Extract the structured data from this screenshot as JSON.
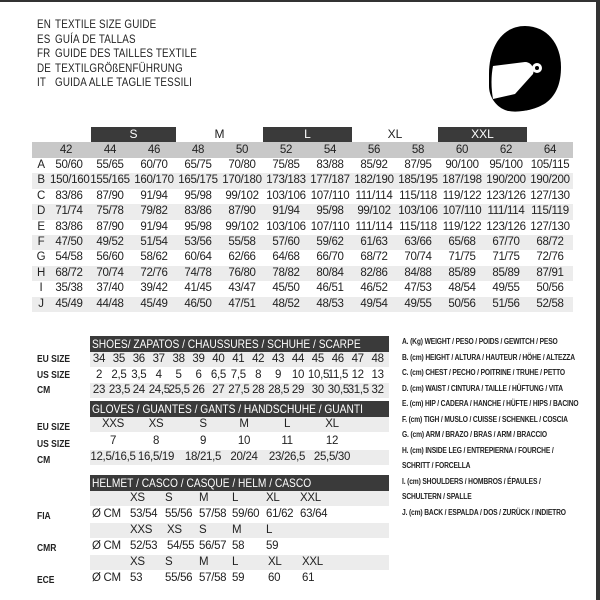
{
  "titles": [
    {
      "lang": "EN",
      "text": "TEXTILE SIZE GUIDE"
    },
    {
      "lang": "ES",
      "text": "GUÍA DE TALLAS"
    },
    {
      "lang": "FR",
      "text": "GUIDE DES TAILLES TEXTILE"
    },
    {
      "lang": "DE",
      "text": "TEXTILGRÖßENFÜHRUNG"
    },
    {
      "lang": "IT",
      "text": "GUIDA ALLE TAGLIE TESSILI"
    }
  ],
  "logo_icon": "helmet-icon",
  "colors": {
    "dark_band": "#3a3a3a",
    "header_gray": "#c8c8c8",
    "stripe": "#ececec"
  },
  "textile": {
    "size_groups": [
      {
        "label": "S",
        "style": "dark"
      },
      {
        "label": "M",
        "style": "light"
      },
      {
        "label": "L",
        "style": "dark"
      },
      {
        "label": "XL",
        "style": "light"
      },
      {
        "label": "XXL",
        "style": "dark"
      }
    ],
    "sizes": [
      "42",
      "44",
      "46",
      "48",
      "50",
      "52",
      "54",
      "56",
      "58",
      "60",
      "62",
      "64"
    ],
    "rows": [
      {
        "key": "A",
        "values": [
          "50/60",
          "55/65",
          "60/70",
          "65/75",
          "70/80",
          "75/85",
          "83/88",
          "85/92",
          "87/95",
          "90/100",
          "95/100",
          "105/115"
        ]
      },
      {
        "key": "B",
        "values": [
          "150/160",
          "155/165",
          "160/170",
          "165/175",
          "170/180",
          "173/183",
          "177/187",
          "182/190",
          "185/195",
          "187/198",
          "190/200",
          "190/200"
        ]
      },
      {
        "key": "C",
        "values": [
          "83/86",
          "87/90",
          "91/94",
          "95/98",
          "99/102",
          "103/106",
          "107/110",
          "111/114",
          "115/118",
          "119/122",
          "123/126",
          "127/130"
        ]
      },
      {
        "key": "D",
        "values": [
          "71/74",
          "75/78",
          "79/82",
          "83/86",
          "87/90",
          "91/94",
          "95/98",
          "99/102",
          "103/106",
          "107/110",
          "111/114",
          "115/119"
        ]
      },
      {
        "key": "E",
        "values": [
          "83/86",
          "87/90",
          "91/94",
          "95/98",
          "99/102",
          "103/106",
          "107/110",
          "111/114",
          "115/118",
          "119/122",
          "123/126",
          "127/130"
        ]
      },
      {
        "key": "F",
        "values": [
          "47/50",
          "49/52",
          "51/54",
          "53/56",
          "55/58",
          "57/60",
          "59/62",
          "61/63",
          "63/66",
          "65/68",
          "67/70",
          "68/72"
        ]
      },
      {
        "key": "G",
        "values": [
          "54/58",
          "56/60",
          "58/62",
          "60/64",
          "62/66",
          "64/68",
          "66/70",
          "68/72",
          "70/74",
          "71/75",
          "71/75",
          "72/76"
        ]
      },
      {
        "key": "H",
        "values": [
          "68/72",
          "70/74",
          "72/76",
          "74/78",
          "76/80",
          "78/82",
          "80/84",
          "82/86",
          "84/88",
          "85/89",
          "85/89",
          "87/91"
        ]
      },
      {
        "key": "I",
        "values": [
          "35/38",
          "37/40",
          "39/42",
          "41/45",
          "43/47",
          "45/50",
          "46/51",
          "46/52",
          "47/53",
          "48/54",
          "49/55",
          "50/56"
        ]
      },
      {
        "key": "J",
        "values": [
          "45/49",
          "44/48",
          "45/49",
          "46/50",
          "47/51",
          "48/52",
          "48/53",
          "49/54",
          "49/55",
          "50/56",
          "51/56",
          "52/58"
        ]
      }
    ]
  },
  "shoes": {
    "title": "SHOES/ ZAPATOS / CHAUSSURES / SCHUHE / SCARPE",
    "rows": [
      {
        "label": "EU SIZE",
        "values": [
          "34",
          "35",
          "36",
          "37",
          "38",
          "39",
          "40",
          "41",
          "42",
          "43",
          "44",
          "45",
          "46",
          "47",
          "48"
        ]
      },
      {
        "label": "US SIZE",
        "values": [
          "2",
          "2,5",
          "3,5",
          "4",
          "5",
          "6",
          "6,5",
          "7,5",
          "8",
          "9",
          "10",
          "10,5",
          "11,5",
          "12",
          "13"
        ]
      },
      {
        "label": "CM",
        "values": [
          "23",
          "23,5",
          "24",
          "24,5",
          "25,5",
          "26",
          "27",
          "27,5",
          "28",
          "28,5",
          "29",
          "30",
          "30,5",
          "31,5",
          "32"
        ]
      }
    ]
  },
  "gloves": {
    "title": "GLOVES / GUANTES / GANTS / HANDSCHUHE / GUANTI",
    "rows": [
      {
        "label": "EU SIZE",
        "values": [
          "XXS",
          "XS",
          "S",
          "M",
          "L",
          "XL"
        ]
      },
      {
        "label": "US SIZE",
        "values": [
          "7",
          "8",
          "9",
          "10",
          "11",
          "12"
        ]
      },
      {
        "label": "CM",
        "values": [
          "12,5/16,5",
          "16,5/19",
          "18/21,5",
          "20/24",
          "23/26,5",
          "25,5/30"
        ]
      }
    ]
  },
  "helmet": {
    "title": "HELMET / CASCO / CASQUE / HELM / CASCO",
    "groups": [
      {
        "label": "FIA",
        "unit": "Ø CM",
        "sizes": [
          "XS",
          "S",
          "M",
          "L",
          "XL",
          "XXL"
        ],
        "values": [
          "53/54",
          "55/56",
          "57/58",
          "59/60",
          "61/62",
          "63/64"
        ]
      },
      {
        "label": "CMR",
        "unit": "Ø CM",
        "sizes": [
          "XXS",
          "XS",
          "S",
          "M",
          "L"
        ],
        "values": [
          "52/53",
          "54/55",
          "56/57",
          "58",
          "59"
        ]
      },
      {
        "label": "ECE",
        "unit": "Ø CM",
        "sizes": [
          "XS",
          "S",
          "M",
          "L",
          "XL",
          "XXL"
        ],
        "values": [
          "53",
          "55/56",
          "57/58",
          "59",
          "60",
          "61"
        ]
      }
    ]
  },
  "legend": [
    "A. (Kg) WEIGHT / PESO / POIDS / GEWITCH / PESO",
    "B. (cm) HEIGHT / ALTURA / HAUTEUR / HÖHE / ALTEZZA",
    "C. (cm) CHEST / PECHO / POITRINE / TRUHE / PETTO",
    "D. (cm) WAIST / CINTURA / TAILLE / HÜFTUNG / VITA",
    "E. (cm) HIP / CADERA / HANCHE / HÜFTE / HIPS /  BACINO",
    "F.  (cm) TIGH / MUSLO / CUISSE / SCHENKEL / COSCIA",
    "G. (cm) ARM  / BRAZO / BRAS / ARM / BRACCIO",
    "H. (cm) INSIDE LEG / ENTREPIERNA / FOURCHE /",
    "SCHRITT / FORCELLA",
    "I.  (cm) SHOULDERS / HOMBROS / ÉPAULES /",
    "SCHULTERN / SPALLE",
    "J. (cm) BACK / ESPALDA / DOS / ZURÜCK / INDIETRO"
  ]
}
